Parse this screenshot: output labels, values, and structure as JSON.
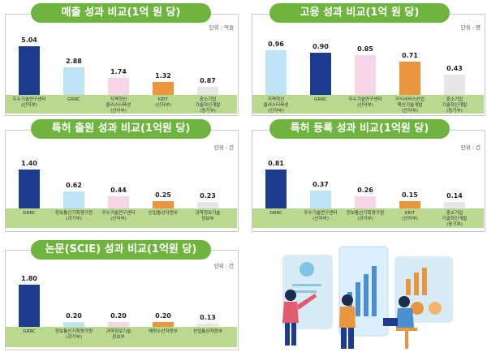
{
  "colors": {
    "navy": "#1d3b8f",
    "lightblue": "#bfe3f6",
    "pink": "#f7d5e6",
    "orange": "#e9963f",
    "gray": "#e6e6e6",
    "green": "#6fb43f"
  },
  "chart_data": [
    {
      "type": "bar",
      "title": "매출 성과 비교(1억 원 당)",
      "unit": "단위 : 억원",
      "categories": [
        "우수기술연구센터\n(산자부)",
        "GRRC",
        "지역혁신\n클러스터육성\n(산자부)",
        "KEIT\n(산자부)",
        "중소기업\n기술혁신개발\n(중기부)"
      ],
      "values": [
        5.04,
        2.88,
        1.74,
        1.32,
        0.87
      ],
      "value_labels": [
        "5.04",
        "2.88",
        "1.74",
        "1.32",
        "0.87"
      ],
      "colors": [
        "navy",
        "lightblue",
        "pink",
        "orange",
        "gray"
      ],
      "ymax": 5.04
    },
    {
      "type": "bar",
      "title": "고용 성과 비교(1억 원 당)",
      "unit": "단위 : 명",
      "categories": [
        "지역혁신\n클러스터육성\n(산자부)",
        "GRRC",
        "우수기술연구센터\n(산자부)",
        "지식서비스산업\n핵신기술개발\n(산자부)",
        "중소기업\n기술혁신개발\n(중기부)"
      ],
      "values": [
        0.96,
        0.9,
        0.85,
        0.71,
        0.43
      ],
      "value_labels": [
        "0.96",
        "0.90",
        "0.85",
        "0.71",
        "0.43"
      ],
      "colors": [
        "lightblue",
        "navy",
        "pink",
        "orange",
        "gray"
      ],
      "ymax": 0.96
    },
    {
      "type": "bar",
      "title": "특허 출원 성과 비교(1억원 당)",
      "unit": "단위 : 건",
      "categories": [
        "GRRC",
        "정보통신기획평가원\n(과기부)",
        "우수기술연구센터\n(산자부)",
        "산업통상자원부",
        "과학정보기술\n정보부"
      ],
      "values": [
        1.4,
        0.62,
        0.44,
        0.25,
        0.23
      ],
      "value_labels": [
        "1.40",
        "0.62",
        "0.44",
        "0.25",
        "0.23"
      ],
      "colors": [
        "navy",
        "lightblue",
        "pink",
        "orange",
        "gray"
      ],
      "ymax": 1.4
    },
    {
      "type": "bar",
      "title": "특허 등록 성과 비교(1억원 당)",
      "unit": "단위 : 건",
      "categories": [
        "GRRC",
        "우수기술연구센터\n(산자부)",
        "정보통신기획평가원\n(과기부)",
        "KEIT\n(산자부)",
        "중소기업\n기술혁신개발\n(중기부)"
      ],
      "values": [
        0.81,
        0.37,
        0.26,
        0.15,
        0.14
      ],
      "value_labels": [
        "0.81",
        "0.37",
        "0.26",
        "0.15",
        "0.14"
      ],
      "colors": [
        "navy",
        "lightblue",
        "pink",
        "orange",
        "gray"
      ],
      "ymax": 0.81
    },
    {
      "type": "bar",
      "title": "논문(SCIE) 성과 비교(1억원 당)",
      "unit": "단위 : 건",
      "categories": [
        "GRRC",
        "정보통신기획평가원\n(과기부)",
        "과학정보기술\n정보부",
        "해양수산자원부",
        "산업통상자원부"
      ],
      "values": [
        1.8,
        0.2,
        0.2,
        0.2,
        0.13
      ],
      "value_labels": [
        "1.80",
        "0.20",
        "0.20",
        "0.20",
        "0.13"
      ],
      "colors": [
        "navy",
        "lightblue",
        "pink",
        "orange",
        "gray"
      ],
      "ymax": 1.8
    }
  ]
}
